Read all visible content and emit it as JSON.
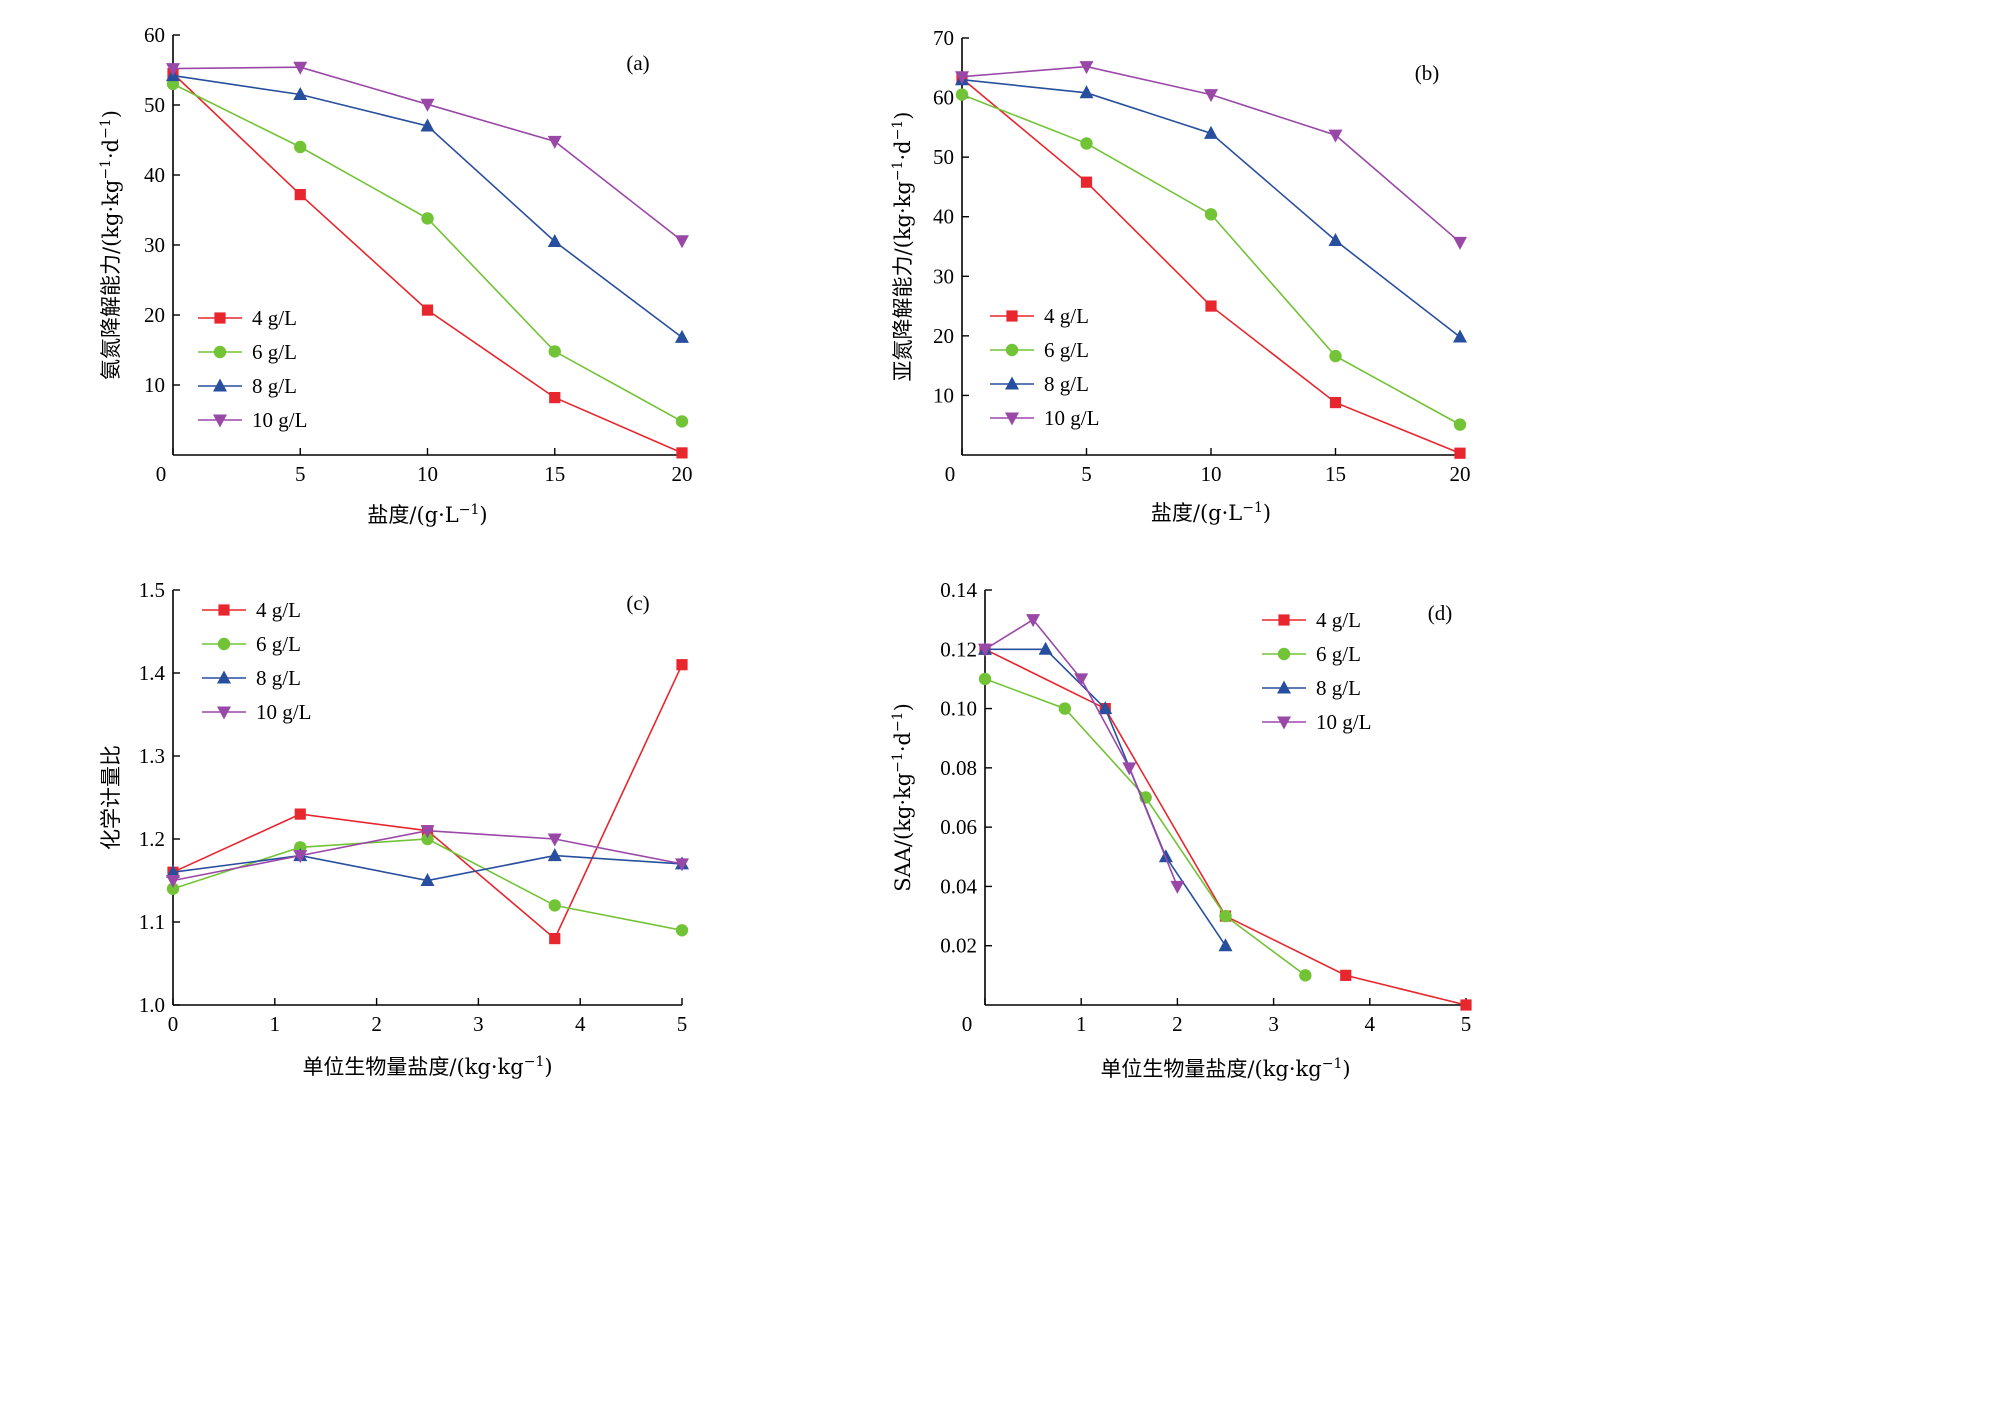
{
  "chart_data": [
    {
      "type": "line",
      "panel_label": "(a)",
      "xlabel": "盐度/(g·L",
      "xlabel_sup": "−1",
      "xlabel_tail": ")",
      "ylabel": "氨氮降解能力/(kg·kg",
      "ylabel_sup1": "−1",
      "ylabel_mid": "·d",
      "ylabel_sup2": "−1",
      "ylabel_tail": ")",
      "xlim": [
        0,
        20
      ],
      "ylim": [
        0,
        60
      ],
      "xticks": [
        0,
        5,
        10,
        15,
        20
      ],
      "yticks": [
        10,
        20,
        30,
        40,
        50,
        60
      ],
      "legend_position": "lower-left",
      "series": [
        {
          "name": "4 g/L",
          "color": "#e8262d",
          "marker": "square",
          "x": [
            0,
            5,
            10,
            15,
            20
          ],
          "y": [
            54.5,
            37.2,
            20.7,
            8.2,
            0.3
          ]
        },
        {
          "name": "6 g/L",
          "color": "#72c336",
          "marker": "circle",
          "x": [
            0,
            5,
            10,
            15,
            20
          ],
          "y": [
            53.0,
            44.0,
            33.8,
            14.8,
            4.8
          ]
        },
        {
          "name": "8 g/L",
          "color": "#284f9e",
          "marker": "triangle-up",
          "x": [
            0,
            5,
            10,
            15,
            20
          ],
          "y": [
            54.2,
            51.5,
            47.0,
            30.5,
            16.8
          ]
        },
        {
          "name": "10 g/L",
          "color": "#9a48a8",
          "marker": "triangle-down",
          "x": [
            0,
            5,
            10,
            15,
            20
          ],
          "y": [
            55.2,
            55.4,
            50.1,
            44.8,
            30.6
          ]
        }
      ]
    },
    {
      "type": "line",
      "panel_label": "(b)",
      "xlabel": "盐度/(g·L",
      "xlabel_sup": "−1",
      "xlabel_tail": ")",
      "ylabel": "亚氮降解能力/(kg·kg",
      "ylabel_sup1": "−1",
      "ylabel_mid": "·d",
      "ylabel_sup2": "−1",
      "ylabel_tail": ")",
      "xlim": [
        0,
        20
      ],
      "ylim": [
        0,
        70
      ],
      "xticks": [
        0,
        5,
        10,
        15,
        20
      ],
      "yticks": [
        10,
        20,
        30,
        40,
        50,
        60,
        70
      ],
      "legend_position": "lower-left",
      "series": [
        {
          "name": "4 g/L",
          "color": "#e8262d",
          "marker": "square",
          "x": [
            0,
            5,
            10,
            15,
            20
          ],
          "y": [
            63.2,
            45.8,
            25.0,
            8.8,
            0.3
          ]
        },
        {
          "name": "6 g/L",
          "color": "#72c336",
          "marker": "circle",
          "x": [
            0,
            5,
            10,
            15,
            20
          ],
          "y": [
            60.5,
            52.3,
            40.4,
            16.6,
            5.1
          ]
        },
        {
          "name": "8 g/L",
          "color": "#284f9e",
          "marker": "triangle-up",
          "x": [
            0,
            5,
            10,
            15,
            20
          ],
          "y": [
            63.0,
            60.8,
            54.0,
            36.0,
            19.8
          ]
        },
        {
          "name": "10 g/L",
          "color": "#9a48a8",
          "marker": "triangle-down",
          "x": [
            0,
            5,
            10,
            15,
            20
          ],
          "y": [
            63.5,
            65.2,
            60.5,
            53.7,
            35.7
          ]
        }
      ]
    },
    {
      "type": "line",
      "panel_label": "(c)",
      "xlabel": "单位生物量盐度/(kg·kg",
      "xlabel_sup": "−1",
      "xlabel_tail": ")",
      "ylabel": "化学计量比",
      "xlim": [
        0,
        5
      ],
      "ylim": [
        1.0,
        1.5
      ],
      "xticks": [
        0,
        1,
        2,
        3,
        4,
        5
      ],
      "yticks": [
        1.0,
        1.1,
        1.2,
        1.3,
        1.4,
        1.5
      ],
      "ytick_format": "1dp",
      "legend_position": "upper-left",
      "series": [
        {
          "name": "4 g/L",
          "color": "#e8262d",
          "marker": "square",
          "x": [
            0,
            1.25,
            2.5,
            3.75,
            5
          ],
          "y": [
            1.16,
            1.23,
            1.21,
            1.08,
            1.41
          ]
        },
        {
          "name": "6 g/L",
          "color": "#72c336",
          "marker": "circle",
          "x": [
            0,
            1.25,
            2.5,
            3.75,
            5
          ],
          "y": [
            1.14,
            1.19,
            1.2,
            1.12,
            1.09
          ]
        },
        {
          "name": "8 g/L",
          "color": "#284f9e",
          "marker": "triangle-up",
          "x": [
            0,
            1.25,
            2.5,
            3.75,
            5
          ],
          "y": [
            1.16,
            1.18,
            1.15,
            1.18,
            1.17
          ]
        },
        {
          "name": "10 g/L",
          "color": "#9a48a8",
          "marker": "triangle-down",
          "x": [
            0,
            1.25,
            2.5,
            3.75,
            5
          ],
          "y": [
            1.15,
            1.18,
            1.21,
            1.2,
            1.17
          ]
        }
      ]
    },
    {
      "type": "line",
      "panel_label": "(d)",
      "xlabel": "单位生物量盐度/(kg·kg",
      "xlabel_sup": "−1",
      "xlabel_tail": ")",
      "ylabel": "SAA/(kg·kg",
      "ylabel_sup1": "−1",
      "ylabel_mid": "·d",
      "ylabel_sup2": "−1",
      "ylabel_tail": ")",
      "xlim": [
        0,
        5
      ],
      "ylim": [
        0,
        0.14
      ],
      "xticks": [
        0,
        1,
        2,
        3,
        4,
        5
      ],
      "yticks": [
        0.02,
        0.04,
        0.06,
        0.08,
        0.1,
        0.12,
        0.14
      ],
      "ytick_format": "2dp",
      "legend_position": "upper-right",
      "series": [
        {
          "name": "4 g/L",
          "color": "#e8262d",
          "marker": "square",
          "x": [
            0,
            1.25,
            2.5,
            3.75,
            5
          ],
          "y": [
            0.12,
            0.1,
            0.03,
            0.01,
            0.0
          ]
        },
        {
          "name": "6 g/L",
          "color": "#72c336",
          "marker": "circle",
          "x": [
            0,
            0.83,
            1.67,
            2.5,
            3.33
          ],
          "y": [
            0.11,
            0.1,
            0.07,
            0.03,
            0.01
          ]
        },
        {
          "name": "8 g/L",
          "color": "#284f9e",
          "marker": "triangle-up",
          "x": [
            0,
            0.63,
            1.25,
            1.88,
            2.5
          ],
          "y": [
            0.12,
            0.12,
            0.1,
            0.05,
            0.02
          ]
        },
        {
          "name": "10 g/L",
          "color": "#9a48a8",
          "marker": "triangle-down",
          "x": [
            0,
            0.5,
            1.0,
            1.5,
            2.0
          ],
          "y": [
            0.12,
            0.13,
            0.11,
            0.08,
            0.04
          ]
        }
      ]
    }
  ]
}
